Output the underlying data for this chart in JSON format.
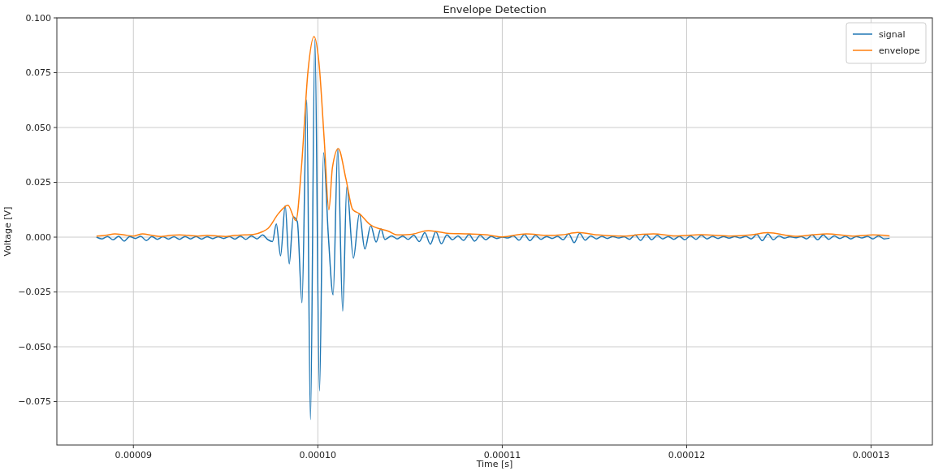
{
  "chart_data": {
    "type": "line",
    "title": "Envelope Detection",
    "xlabel": "Time [s]",
    "ylabel": "Voltage [V]",
    "xlim": [
      8.585e-05,
      0.00013332
    ],
    "ylim": [
      -0.0948,
      0.1
    ],
    "xticks": [
      {
        "value": 9e-05,
        "label": "0.00009"
      },
      {
        "value": 0.0001,
        "label": "0.00010"
      },
      {
        "value": 0.00011,
        "label": "0.00011"
      },
      {
        "value": 0.00012,
        "label": "0.00012"
      },
      {
        "value": 0.00013,
        "label": "0.00013"
      }
    ],
    "yticks": [
      {
        "value": -0.075,
        "label": "−0.075"
      },
      {
        "value": -0.05,
        "label": "−0.050"
      },
      {
        "value": -0.025,
        "label": "−0.025"
      },
      {
        "value": 0,
        "label": "0.000"
      },
      {
        "value": 0.025,
        "label": "0.025"
      },
      {
        "value": 0.05,
        "label": "0.050"
      },
      {
        "value": 0.075,
        "label": "0.075"
      },
      {
        "value": 0.1,
        "label": "0.100"
      }
    ],
    "grid": true,
    "legend": "top right",
    "series": [
      {
        "name": "signal",
        "color": "#1f77b4",
        "x": [
          8.8e-05,
          8.83e-05,
          8.86e-05,
          8.89e-05,
          8.92e-05,
          8.95e-05,
          8.98e-05,
          9.01e-05,
          9.04e-05,
          9.07e-05,
          9.1e-05,
          9.13e-05,
          9.16e-05,
          9.19e-05,
          9.22e-05,
          9.25e-05,
          9.28e-05,
          9.31e-05,
          9.34e-05,
          9.37e-05,
          9.4e-05,
          9.43e-05,
          9.46e-05,
          9.49e-05,
          9.52e-05,
          9.55e-05,
          9.58e-05,
          9.61e-05,
          9.64e-05,
          9.67e-05,
          9.7e-05,
          9.73e-05,
          9.754e-05,
          9.775e-05,
          9.798e-05,
          9.823e-05,
          9.845e-05,
          9.867e-05,
          9.889e-05,
          9.914e-05,
          9.94e-05,
          9.96e-05,
          9.984e-05,
          0.00010009,
          0.00010031,
          0.00010057,
          0.00010083,
          0.00010108,
          0.00010135,
          0.00010157,
          0.00010193,
          0.00010225,
          0.00010255,
          0.00010287,
          0.00010316,
          0.00010342,
          0.00010364,
          0.000104,
          0.0001043,
          0.0001046,
          0.0001049,
          0.0001052,
          0.0001055,
          0.0001058,
          0.0001061,
          0.0001064,
          0.0001067,
          0.000107,
          0.0001073,
          0.0001076,
          0.0001079,
          0.0001082,
          0.0001085,
          0.0001088,
          0.0001091,
          0.0001094,
          0.0001097,
          0.00011,
          0.0001103,
          0.0001106,
          0.0001109,
          0.0001112,
          0.0001115,
          0.0001118,
          0.0001121,
          0.0001124,
          0.0001127,
          0.000113,
          0.0001133,
          0.0001136,
          0.0001139,
          0.0001142,
          0.0001145,
          0.0001148,
          0.0001151,
          0.0001154,
          0.0001157,
          0.000116,
          0.0001163,
          0.0001166,
          0.0001169,
          0.0001172,
          0.0001175,
          0.0001178,
          0.0001181,
          0.0001184,
          0.0001187,
          0.000119,
          0.0001193,
          0.0001196,
          0.0001199,
          0.0001202,
          0.0001205,
          0.0001208,
          0.0001211,
          0.0001214,
          0.0001217,
          0.000122,
          0.0001223,
          0.0001226,
          0.0001229,
          0.0001232,
          0.0001235,
          0.0001238,
          0.0001241,
          0.0001244,
          0.0001247,
          0.000125,
          0.0001253,
          0.0001256,
          0.0001259,
          0.0001262,
          0.0001265,
          0.0001268,
          0.0001271,
          0.0001274,
          0.0001277,
          0.000128,
          0.0001283,
          0.0001286,
          0.0001289,
          0.0001292,
          0.0001295,
          0.0001298,
          0.0001301,
          0.0001304,
          0.0001307,
          0.000131
        ],
        "values": [
          0.0,
          -0.0008,
          0.0003,
          -0.0012,
          0.0004,
          -0.0018,
          0.0003,
          -0.0006,
          0.0004,
          -0.0016,
          0.0003,
          -0.001,
          0.0002,
          -0.0009,
          0.0002,
          -0.001,
          0.0003,
          -0.0008,
          0.0003,
          -0.0009,
          0.0002,
          -0.0007,
          0.0002,
          -0.0006,
          0.0003,
          -0.0009,
          0.0005,
          -0.001,
          0.0006,
          -0.0008,
          0.001,
          -0.0012,
          -0.002,
          0.006,
          -0.0085,
          0.0144,
          -0.0122,
          0.0093,
          0.007,
          -0.0299,
          0.0626,
          -0.0832,
          0.0902,
          -0.0702,
          0.0385,
          0.0007,
          -0.0263,
          0.0404,
          -0.0337,
          0.023,
          -0.0096,
          0.0107,
          -0.0054,
          0.0052,
          -0.0022,
          0.0038,
          -0.0011,
          0.0006,
          -0.0008,
          0.0005,
          -0.001,
          0.0008,
          -0.002,
          0.002,
          -0.0032,
          0.0025,
          -0.003,
          0.001,
          -0.0012,
          0.0006,
          -0.0015,
          0.0012,
          -0.0018,
          0.0008,
          -0.0012,
          0.0004,
          -0.0006,
          0.0,
          -0.0004,
          0.0006,
          -0.0014,
          0.0012,
          -0.0016,
          0.0008,
          -0.001,
          0.0003,
          -0.0006,
          0.0004,
          -0.0012,
          0.0015,
          -0.0025,
          0.0018,
          -0.0014,
          0.0006,
          -0.0008,
          0.0004,
          -0.0006,
          0.0003,
          -0.0004,
          0.0002,
          -0.001,
          0.001,
          -0.0015,
          0.0012,
          -0.0012,
          0.0008,
          -0.0008,
          0.0003,
          -0.001,
          0.0004,
          -0.0012,
          0.0006,
          -0.001,
          0.0008,
          -0.0008,
          0.0004,
          -0.0006,
          0.0003,
          -0.0005,
          0.0003,
          -0.0004,
          0.0004,
          -0.0008,
          0.0012,
          -0.0016,
          0.0015,
          -0.0012,
          0.0006,
          -0.0005,
          0.0002,
          -0.0003,
          0.0003,
          -0.0008,
          0.001,
          -0.0012,
          0.001,
          -0.001,
          0.0006,
          -0.0006,
          0.0004,
          -0.0008,
          0.0003,
          -0.0004,
          0.0004,
          -0.0008,
          0.0006,
          -0.0008,
          -0.0005
        ]
      },
      {
        "name": "envelope",
        "color": "#ff7f0e",
        "x": [
          8.8e-05,
          8.85e-05,
          8.9e-05,
          8.95e-05,
          9e-05,
          9.05e-05,
          9.1e-05,
          9.15e-05,
          9.2e-05,
          9.25e-05,
          9.3e-05,
          9.35e-05,
          9.4e-05,
          9.45e-05,
          9.5e-05,
          9.55e-05,
          9.6e-05,
          9.65e-05,
          9.7e-05,
          9.73e-05,
          9.786e-05,
          9.838e-05,
          9.881e-05,
          9.911e-05,
          9.947e-05,
          9.979e-05,
          0.00010006,
          0.00010035,
          0.0001006,
          0.00010079,
          0.00010111,
          0.00010152,
          0.00010189,
          0.00010225,
          0.00010284,
          0.00010386,
          0.0001043,
          0.000105,
          0.000106,
          0.000107,
          0.0001082,
          0.0001092,
          0.00011,
          0.0001113,
          0.0001125,
          0.0001132,
          0.0001141,
          0.0001152,
          0.0001166,
          0.0001175,
          0.0001182,
          0.0001194,
          0.0001208,
          0.0001223,
          0.0001235,
          0.0001244,
          0.0001259,
          0.0001268,
          0.0001276,
          0.000129,
          0.0001301,
          0.000131
        ],
        "values": [
          0.0005,
          0.0008,
          0.0015,
          0.001,
          0.0005,
          0.0015,
          0.0008,
          0.0003,
          0.0008,
          0.001,
          0.0008,
          0.0005,
          0.0008,
          0.0006,
          0.0003,
          0.0008,
          0.001,
          0.0012,
          0.0025,
          0.004,
          0.0107,
          0.0145,
          0.0075,
          0.0316,
          0.076,
          0.0915,
          0.0797,
          0.044,
          0.0125,
          0.0316,
          0.0404,
          0.0267,
          0.0126,
          0.0107,
          0.0057,
          0.0026,
          0.001,
          0.0012,
          0.003,
          0.0018,
          0.0015,
          0.001,
          0.0001,
          0.0015,
          0.0008,
          0.001,
          0.0021,
          0.001,
          0.0005,
          0.0012,
          0.0015,
          0.0006,
          0.0011,
          0.0005,
          0.001,
          0.002,
          0.0004,
          0.001,
          0.0015,
          0.0005,
          0.001,
          0.0006
        ]
      }
    ]
  }
}
